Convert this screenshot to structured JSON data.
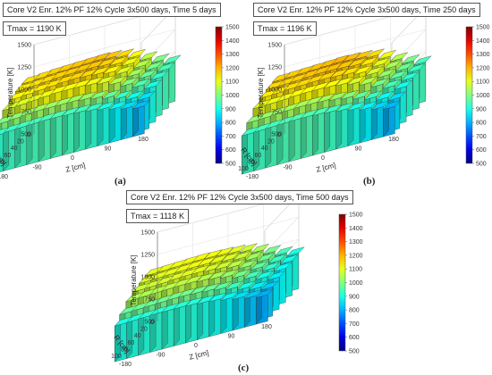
{
  "chart_data": [
    {
      "type": "bar3d",
      "title": "Core V2 Enr. 12% PF 12% Cycle 3x500 days, Time 5 days",
      "annotation": "Tmax = 1190 K",
      "panel_label": "(a)",
      "xlabel": "Z [cm]",
      "ylabel": "R [cm]",
      "zlabel": "Temperature [K]",
      "x_ticks": [
        "-180",
        "-90",
        "0",
        "90",
        "180"
      ],
      "y_ticks": [
        "0",
        "20",
        "40",
        "60",
        "80",
        "100"
      ],
      "z_ticks": [
        "500",
        "750",
        "1000",
        "1250",
        "1500"
      ],
      "colorbar_ticks": [
        "500",
        "600",
        "700",
        "800",
        "900",
        "1000",
        "1100",
        "1200",
        "1300",
        "1400",
        "1500"
      ],
      "zlim": [
        500,
        1500
      ],
      "colormap": "jet",
      "tmax": 1190,
      "r_values": [
        10,
        30,
        50,
        70,
        90,
        105
      ],
      "z_values": [
        -180,
        -150,
        -120,
        -90,
        -60,
        -30,
        0,
        30,
        60,
        90,
        120,
        150,
        180
      ],
      "temperature": [
        [
          1150,
          1160,
          1170,
          1175,
          1180,
          1185,
          1190,
          1180,
          1160,
          1120,
          1060,
          1000,
          950
        ],
        [
          1140,
          1150,
          1160,
          1170,
          1175,
          1180,
          1180,
          1170,
          1150,
          1110,
          1050,
          990,
          940
        ],
        [
          1120,
          1130,
          1140,
          1150,
          1160,
          1165,
          1160,
          1150,
          1130,
          1090,
          1030,
          975,
          925
        ],
        [
          1080,
          1090,
          1100,
          1110,
          1120,
          1120,
          1120,
          1110,
          1090,
          1050,
          1000,
          950,
          900
        ],
        [
          1000,
          1010,
          1020,
          1030,
          1030,
          1030,
          1030,
          1020,
          1000,
          970,
          930,
          890,
          850
        ],
        [
          920,
          930,
          935,
          940,
          945,
          945,
          940,
          935,
          920,
          900,
          870,
          840,
          810
        ]
      ]
    },
    {
      "type": "bar3d",
      "title": "Core V2 Enr. 12% PF 12% Cycle 3x500 days, Time 250 days",
      "annotation": "Tmax = 1196 K",
      "panel_label": "(b)",
      "xlabel": "Z [cm]",
      "ylabel": "R [cm]",
      "zlabel": "Temperature [K]",
      "x_ticks": [
        "-180",
        "-90",
        "0",
        "90",
        "180"
      ],
      "y_ticks": [
        "0",
        "20",
        "40",
        "60",
        "80",
        "100"
      ],
      "z_ticks": [
        "500",
        "750",
        "1000",
        "1250",
        "1500"
      ],
      "colorbar_ticks": [
        "500",
        "600",
        "700",
        "800",
        "900",
        "1000",
        "1100",
        "1200",
        "1300",
        "1400",
        "1500"
      ],
      "zlim": [
        500,
        1500
      ],
      "colormap": "jet",
      "tmax": 1196,
      "r_values": [
        10,
        30,
        50,
        70,
        90,
        105
      ],
      "z_values": [
        -180,
        -150,
        -120,
        -90,
        -60,
        -30,
        0,
        30,
        60,
        90,
        120,
        150,
        180
      ],
      "temperature": [
        [
          1170,
          1175,
          1180,
          1185,
          1190,
          1196,
          1190,
          1180,
          1160,
          1110,
          1050,
          990,
          940
        ],
        [
          1160,
          1165,
          1170,
          1180,
          1185,
          1185,
          1180,
          1170,
          1145,
          1100,
          1040,
          980,
          930
        ],
        [
          1140,
          1145,
          1155,
          1160,
          1165,
          1165,
          1160,
          1150,
          1125,
          1080,
          1020,
          965,
          915
        ],
        [
          1100,
          1105,
          1110,
          1120,
          1125,
          1125,
          1120,
          1110,
          1085,
          1045,
          990,
          940,
          895
        ],
        [
          1015,
          1020,
          1030,
          1035,
          1040,
          1040,
          1035,
          1020,
          1000,
          965,
          925,
          885,
          845
        ],
        [
          930,
          935,
          940,
          945,
          950,
          950,
          945,
          935,
          920,
          895,
          865,
          835,
          805
        ]
      ]
    },
    {
      "type": "bar3d",
      "title": "Core V2 Enr. 12% PF 12% Cycle 3x500 days, Time 500 days",
      "annotation": "Tmax = 1118 K",
      "panel_label": "(c)",
      "xlabel": "Z [cm]",
      "ylabel": "R [cm]",
      "zlabel": "Temperature [K]",
      "x_ticks": [
        "-180",
        "-90",
        "0",
        "90",
        "180"
      ],
      "y_ticks": [
        "0",
        "20",
        "40",
        "60",
        "80",
        "100"
      ],
      "z_ticks": [
        "500",
        "750",
        "1000",
        "1250",
        "1500"
      ],
      "colorbar_ticks": [
        "500",
        "600",
        "700",
        "800",
        "900",
        "1000",
        "1100",
        "1200",
        "1300",
        "1400",
        "1500"
      ],
      "zlim": [
        500,
        1500
      ],
      "colormap": "jet",
      "tmax": 1118,
      "r_values": [
        10,
        30,
        50,
        70,
        90,
        105
      ],
      "z_values": [
        -180,
        -150,
        -120,
        -90,
        -60,
        -30,
        0,
        30,
        60,
        90,
        120,
        150,
        180
      ],
      "temperature": [
        [
          1100,
          1105,
          1110,
          1115,
          1118,
          1115,
          1110,
          1100,
          1080,
          1040,
          990,
          940,
          900
        ],
        [
          1090,
          1095,
          1100,
          1105,
          1110,
          1110,
          1100,
          1090,
          1070,
          1030,
          980,
          930,
          890
        ],
        [
          1070,
          1075,
          1080,
          1090,
          1095,
          1095,
          1085,
          1075,
          1055,
          1015,
          965,
          920,
          880
        ],
        [
          1040,
          1045,
          1050,
          1055,
          1060,
          1060,
          1050,
          1040,
          1020,
          985,
          940,
          900,
          860
        ],
        [
          970,
          975,
          980,
          985,
          990,
          990,
          985,
          975,
          960,
          930,
          895,
          860,
          825
        ],
        [
          900,
          905,
          910,
          915,
          915,
          915,
          910,
          900,
          890,
          870,
          845,
          820,
          795
        ]
      ]
    }
  ]
}
